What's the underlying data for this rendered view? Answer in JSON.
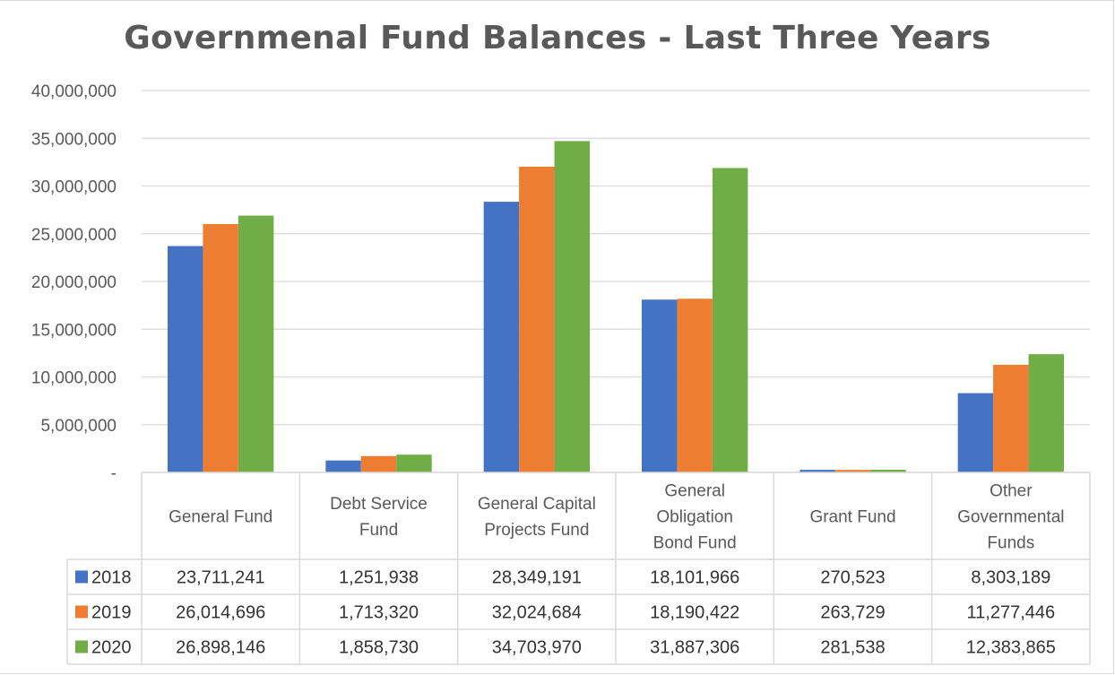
{
  "chart_data": {
    "type": "bar",
    "title": "Governmenal Fund Balances - Last Three Years",
    "xlabel": "",
    "ylabel": "",
    "ylim": [
      0,
      40000000
    ],
    "yticks": [
      0,
      5000000,
      10000000,
      15000000,
      20000000,
      25000000,
      30000000,
      35000000,
      40000000
    ],
    "ytick_labels": [
      "-",
      "5,000,000",
      "10,000,000",
      "15,000,000",
      "20,000,000",
      "25,000,000",
      "30,000,000",
      "35,000,000",
      "40,000,000"
    ],
    "grid": true,
    "legend": "data-table",
    "categories": [
      [
        "General Fund"
      ],
      [
        "Debt Service",
        "Fund"
      ],
      [
        "General Capital",
        "Projects Fund"
      ],
      [
        "General",
        "Obligation",
        "Bond Fund"
      ],
      [
        "Grant Fund"
      ],
      [
        "Other",
        "Governmental",
        "Funds"
      ]
    ],
    "series": [
      {
        "name": "2018",
        "color": "#4472c4",
        "values": [
          23711241,
          1251938,
          28349191,
          18101966,
          270523,
          8303189
        ],
        "labels": [
          "23,711,241",
          "1,251,938",
          "28,349,191",
          "18,101,966",
          "270,523",
          "8,303,189"
        ]
      },
      {
        "name": "2019",
        "color": "#ed7d31",
        "values": [
          26014696,
          1713320,
          32024684,
          18190422,
          263729,
          11277446
        ],
        "labels": [
          "26,014,696",
          "1,713,320",
          "32,024,684",
          "18,190,422",
          "263,729",
          "11,277,446"
        ]
      },
      {
        "name": "2020",
        "color": "#70ad47",
        "values": [
          26898146,
          1858730,
          34703970,
          31887306,
          281538,
          12383865
        ],
        "labels": [
          "26,898,146",
          "1,858,730",
          "34,703,970",
          "31,887,306",
          "281,538",
          "12,383,865"
        ]
      }
    ]
  }
}
